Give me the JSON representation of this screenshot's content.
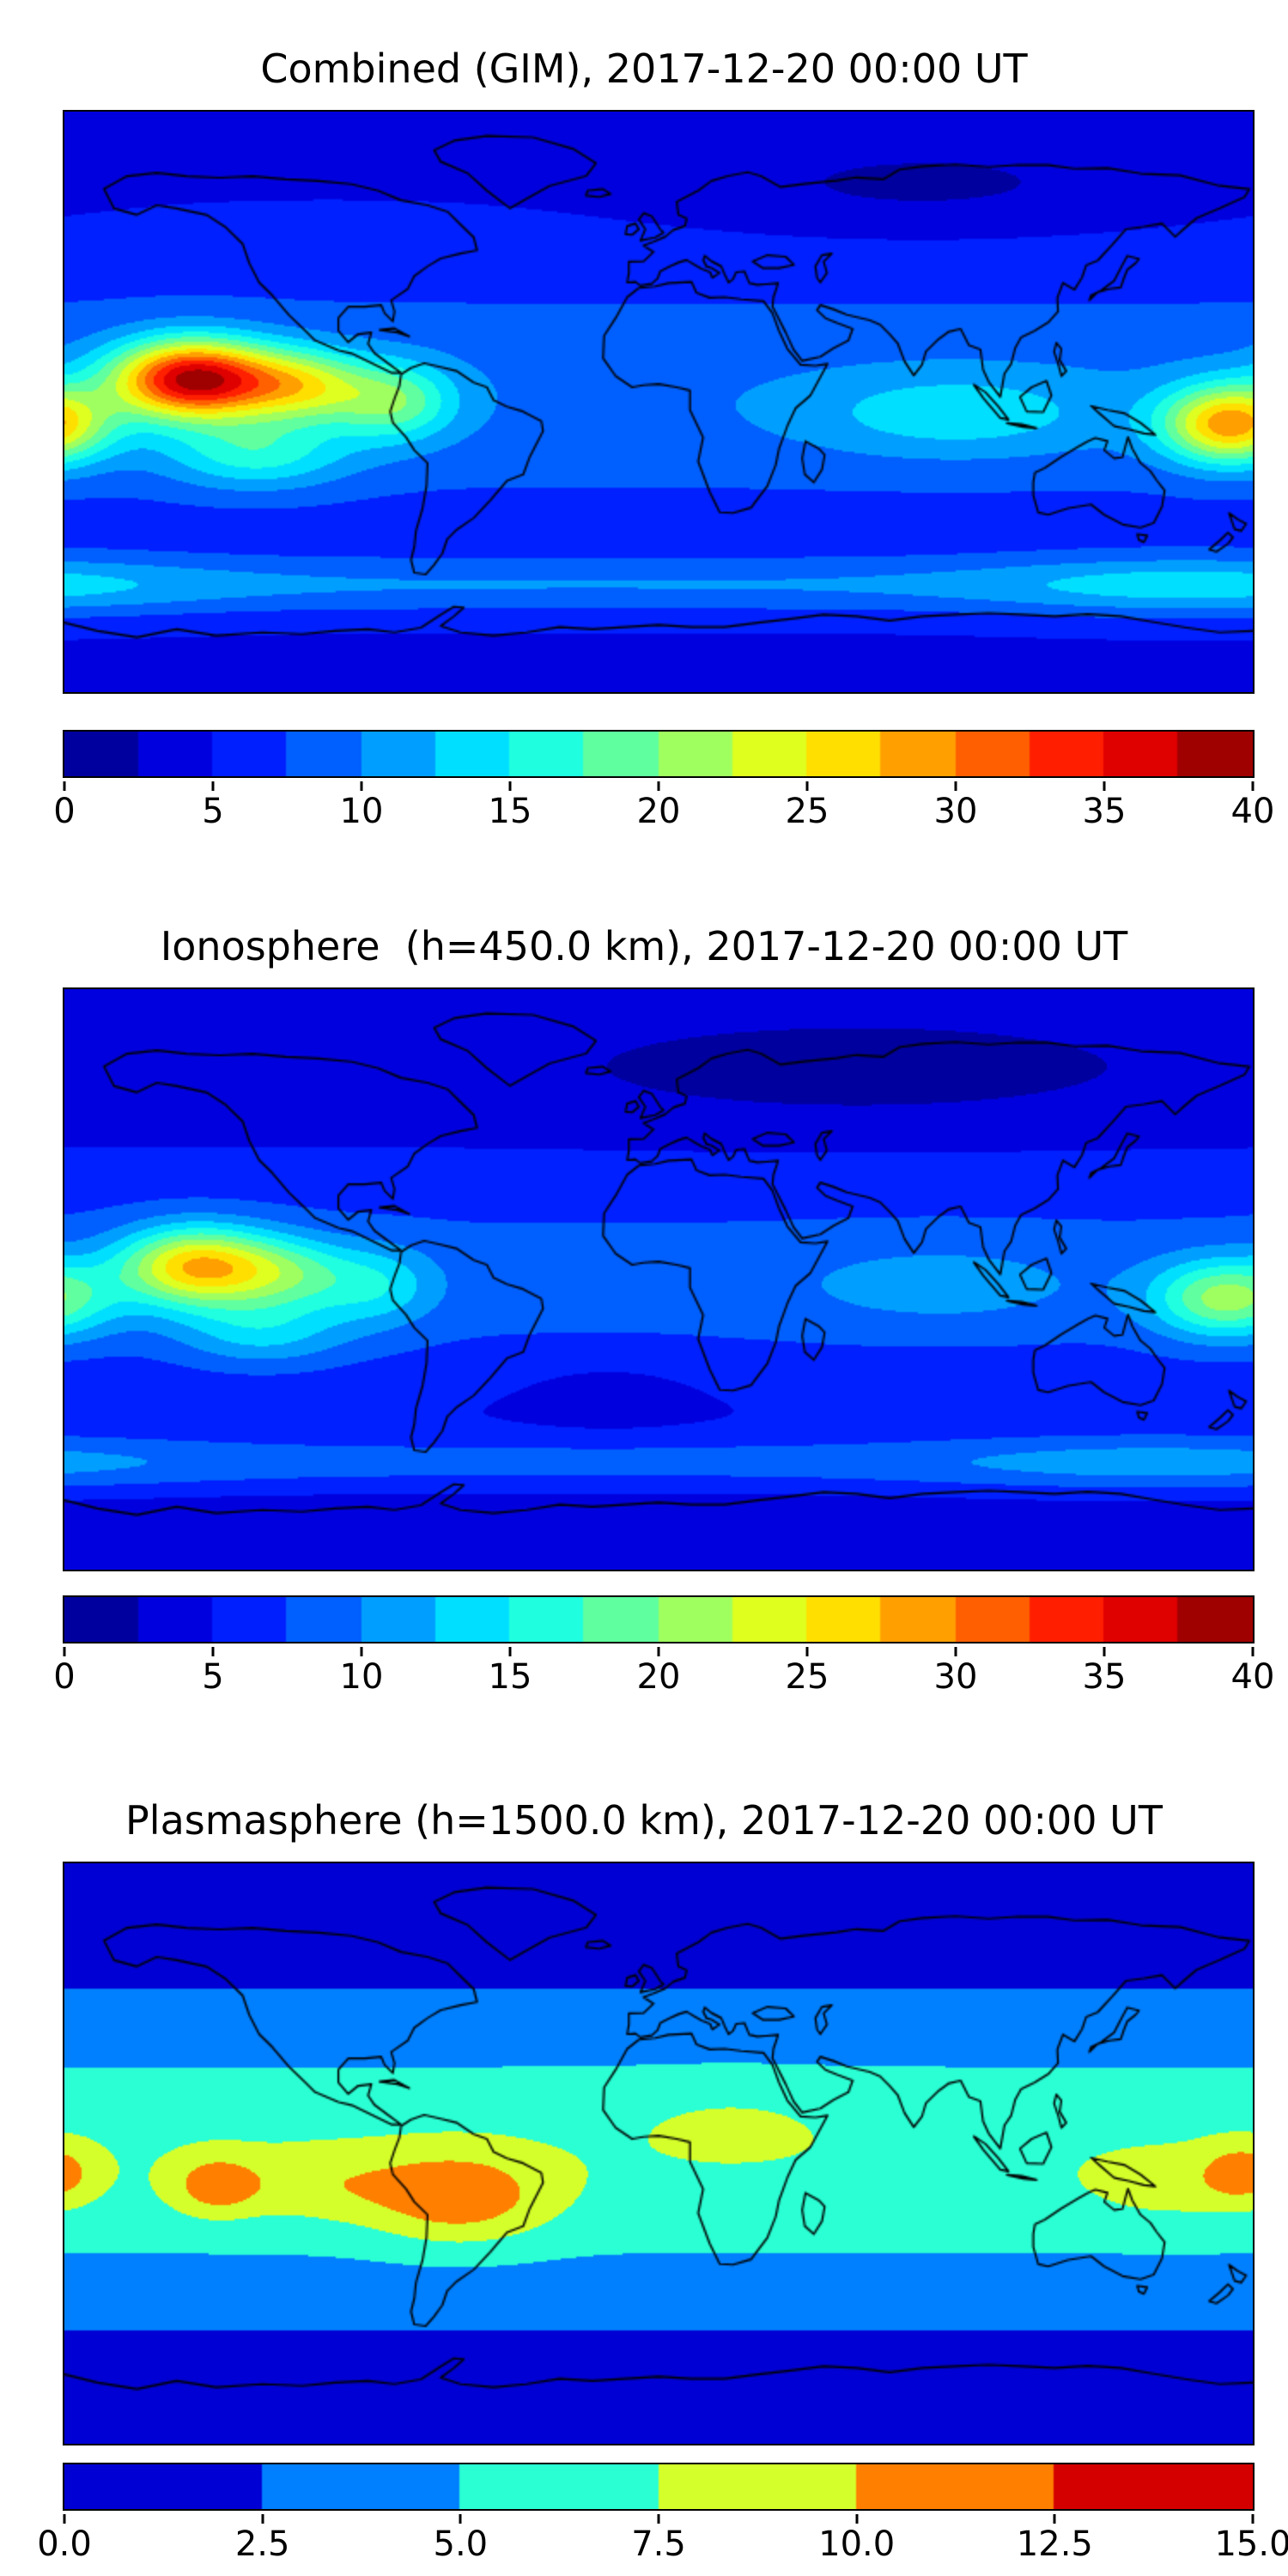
{
  "figure": {
    "background": "#ffffff",
    "colormap": "jet",
    "projection": "equirectangular",
    "lon_range": [
      -180,
      180
    ],
    "lat_range": [
      -90,
      90
    ]
  },
  "chart_data": [
    {
      "type": "heatmap",
      "subtype": "filled-contour-world-map",
      "title": "Combined (GIM), 2017-12-20 00:00 UT",
      "colormap": "jet",
      "value_range": [
        0,
        40
      ],
      "contour_step": 2.5,
      "n_bands": 16,
      "colorbar_tick_labels": [
        "0",
        "5",
        "10",
        "15",
        "20",
        "25",
        "30",
        "35",
        "40"
      ],
      "approx_max_value": 38,
      "approx_max_location": {
        "lon": -140,
        "lat": 7
      },
      "field_model": {
        "base": {
          "offset": 4.5,
          "amp": 5.0,
          "lat_center": 2,
          "lat_sigma": 40
        },
        "blobs": [
          {
            "lon": -141,
            "lat": 7,
            "amp": 29,
            "slon": 24,
            "slat": 12
          },
          {
            "lon": -108,
            "lat": 5,
            "amp": 13,
            "slon": 20,
            "slat": 11
          },
          {
            "lon": -80,
            "lat": 0,
            "amp": 10,
            "slon": 18,
            "slat": 12
          },
          {
            "lon": 173,
            "lat": -7,
            "amp": 20,
            "slon": 20,
            "slat": 12
          },
          {
            "lon": -122,
            "lat": -16,
            "amp": 8,
            "slon": 28,
            "slat": 11
          },
          {
            "lon": 90,
            "lat": -4,
            "amp": 5,
            "slon": 45,
            "slat": 13
          },
          {
            "lon": 0,
            "lat": -57,
            "amp": 5,
            "slon": 9999,
            "slat": 9
          },
          {
            "lon": 160,
            "lat": -57,
            "amp": 4,
            "slon": 60,
            "slat": 10
          },
          {
            "lon": 80,
            "lat": 67,
            "amp": -2.8,
            "slon": 70,
            "slat": 14
          }
        ]
      }
    },
    {
      "type": "heatmap",
      "subtype": "filled-contour-world-map",
      "title": "Ionosphere  (h=450.0 km), 2017-12-20 00:00 UT",
      "colormap": "jet",
      "value_range": [
        0,
        40
      ],
      "contour_step": 2.5,
      "n_bands": 16,
      "colorbar_tick_labels": [
        "0",
        "5",
        "10",
        "15",
        "20",
        "25",
        "30",
        "35",
        "40"
      ],
      "approx_max_value": 27,
      "approx_max_location": {
        "lon": -140,
        "lat": 4
      },
      "field_model": {
        "base": {
          "offset": 3.2,
          "amp": 5.2,
          "lat_center": 0,
          "lat_sigma": 40
        },
        "blobs": [
          {
            "lon": -140,
            "lat": 4,
            "amp": 19,
            "slon": 23,
            "slat": 12
          },
          {
            "lon": -112,
            "lat": 2,
            "amp": 8,
            "slon": 20,
            "slat": 11
          },
          {
            "lon": -85,
            "lat": -2,
            "amp": 6,
            "slon": 18,
            "slat": 12
          },
          {
            "lon": 172,
            "lat": -6,
            "amp": 13,
            "slon": 22,
            "slat": 12
          },
          {
            "lon": -120,
            "lat": -16,
            "amp": 6,
            "slon": 26,
            "slat": 11
          },
          {
            "lon": 85,
            "lat": -2,
            "amp": 3,
            "slon": 45,
            "slat": 13
          },
          {
            "lon": 0,
            "lat": -57,
            "amp": 4.5,
            "slon": 9999,
            "slat": 9
          },
          {
            "lon": 150,
            "lat": -57,
            "amp": 3,
            "slon": 70,
            "slat": 10
          },
          {
            "lon": 60,
            "lat": 63,
            "amp": -2.2,
            "slon": 90,
            "slat": 15
          },
          {
            "lon": -15,
            "lat": -35,
            "amp": -1.8,
            "slon": 28,
            "slat": 11
          }
        ]
      }
    },
    {
      "type": "heatmap",
      "subtype": "filled-contour-world-map",
      "title": "Plasmasphere (h=1500.0 km), 2017-12-20 00:00 UT",
      "colormap": "jet",
      "value_range": [
        0,
        15
      ],
      "contour_step": 2.5,
      "n_bands": 6,
      "colorbar_tick_labels": [
        "0.0",
        "2.5",
        "5.0",
        "7.5",
        "10.0",
        "12.5",
        "15.0"
      ],
      "approx_max_value": 12,
      "approx_max_location": {
        "lon": -60,
        "lat": -14
      },
      "field_model": {
        "base": {
          "offset": 1.1,
          "amp": 6.0,
          "lat_center": -2,
          "lat_sigma": 44
        },
        "blobs": [
          {
            "lon": -60,
            "lat": -14,
            "amp": 5.2,
            "slon": 26,
            "slat": 14
          },
          {
            "lon": -134,
            "lat": -10,
            "amp": 4.6,
            "slon": 13,
            "slat": 9
          },
          {
            "lon": -100,
            "lat": -10,
            "amp": 2.4,
            "slon": 30,
            "slat": 11
          },
          {
            "lon": 177,
            "lat": -6,
            "amp": 4.2,
            "slon": 12,
            "slat": 9
          },
          {
            "lon": 155,
            "lat": -10,
            "amp": 1.8,
            "slon": 25,
            "slat": 11
          },
          {
            "lon": 22,
            "lat": 10,
            "amp": 1.3,
            "slon": 30,
            "slat": 12
          }
        ]
      }
    }
  ]
}
